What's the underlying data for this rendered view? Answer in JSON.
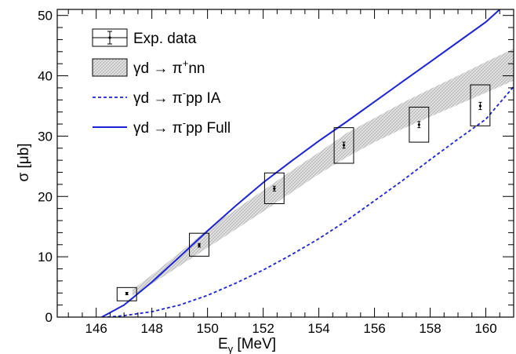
{
  "chart_data": {
    "type": "scatter",
    "xlabel": "E",
    "xlabel_sub": "γ",
    "xlabel_unit": " [MeV]",
    "ylabel": "σ [μb]",
    "xlim": [
      144.6,
      161.0
    ],
    "ylim": [
      0,
      51
    ],
    "xticks": [
      146,
      148,
      150,
      152,
      154,
      156,
      158,
      160
    ],
    "yticks": [
      0,
      10,
      20,
      30,
      40,
      50
    ],
    "grid": false,
    "legend_position": "top-left",
    "legend": [
      {
        "kind": "data",
        "label": "Exp. data"
      },
      {
        "kind": "band",
        "label_main": "γd → π",
        "label_sup": "+",
        "label_tail": "nn"
      },
      {
        "kind": "dashed",
        "label_main": "γd → π",
        "label_sup": "-",
        "label_tail": "pp IA"
      },
      {
        "kind": "solid",
        "label_main": "γd → π",
        "label_sup": "-",
        "label_tail": "pp Full"
      }
    ],
    "colors": {
      "model": "#1a24d6",
      "band": "#c8c8c8",
      "axis": "#000000"
    },
    "exp_data": {
      "x": [
        147.1,
        149.7,
        152.4,
        154.9,
        157.6,
        159.8
      ],
      "y": [
        3.9,
        11.9,
        21.3,
        28.5,
        31.9,
        35.0
      ],
      "stat_err": [
        0.2,
        0.3,
        0.4,
        0.5,
        0.5,
        0.6
      ],
      "sys_x_halfwidth": [
        0.35,
        0.35,
        0.35,
        0.35,
        0.35,
        0.35
      ],
      "sys_y_low": [
        2.7,
        10.1,
        18.8,
        25.5,
        29.0,
        31.7
      ],
      "sys_y_high": [
        4.9,
        13.9,
        23.9,
        31.4,
        34.8,
        38.5
      ]
    },
    "band_pi_plus_nn": {
      "x": [
        147.3,
        148.0,
        149.0,
        150.0,
        151.0,
        152.0,
        153.0,
        154.0,
        155.0,
        156.0,
        157.0,
        158.0,
        159.0,
        160.0,
        161.0
      ],
      "lower": [
        3.5,
        5.5,
        8.5,
        11.5,
        14.5,
        17.5,
        20.6,
        23.7,
        26.5,
        29.0,
        31.2,
        33.2,
        35.2,
        37.2,
        39.2
      ],
      "upper": [
        4.5,
        7.0,
        10.7,
        14.5,
        17.8,
        21.0,
        24.2,
        27.3,
        30.5,
        33.0,
        35.5,
        37.8,
        40.0,
        42.3,
        44.5
      ]
    },
    "series": [
      {
        "name": "γd → π-pp IA",
        "style": "dashed",
        "x": [
          146.4,
          147.0,
          148.0,
          149.0,
          150.0,
          151.0,
          152.0,
          153.0,
          154.0,
          155.0,
          156.0,
          157.0,
          158.0,
          159.0,
          160.0,
          161.0
        ],
        "y": [
          0.0,
          0.25,
          0.9,
          2.0,
          3.6,
          5.6,
          7.8,
          10.3,
          13.0,
          16.0,
          19.3,
          22.6,
          26.1,
          29.5,
          32.8,
          38.2
        ]
      },
      {
        "name": "γd → π-pp Full",
        "style": "solid",
        "x": [
          146.2,
          147.0,
          148.0,
          149.0,
          150.0,
          151.0,
          152.0,
          153.0,
          154.0,
          155.0,
          156.0,
          157.0,
          158.0,
          159.0,
          160.0,
          160.5
        ],
        "y": [
          0.0,
          2.0,
          5.8,
          10.0,
          14.3,
          18.4,
          22.3,
          25.8,
          29.2,
          32.4,
          35.7,
          39.0,
          42.3,
          45.6,
          48.9,
          51.0
        ]
      }
    ]
  }
}
